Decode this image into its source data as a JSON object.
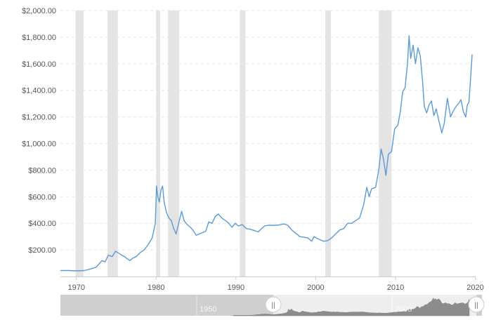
{
  "chart_data": {
    "type": "line",
    "title": "",
    "xlabel": "",
    "ylabel": "",
    "xlim": [
      1968,
      2019.6
    ],
    "ylim": [
      0,
      2000
    ],
    "grid": true,
    "y_ticks": [
      200,
      400,
      600,
      800,
      1000,
      1200,
      1400,
      1600,
      1800,
      2000
    ],
    "y_tick_labels": [
      "$200.00",
      "$400.00",
      "$600.00",
      "$800.00",
      "$1,000.00",
      "$1,200.00",
      "$1,400.00",
      "$1,600.00",
      "$1,800.00",
      "$2,000.00"
    ],
    "x_ticks": [
      1970,
      1980,
      1990,
      2000,
      2010,
      2020
    ],
    "x_tick_labels": [
      "1970",
      "1980",
      "1990",
      "2000",
      "2010",
      "2020"
    ],
    "recession_bands": [
      [
        1969.9,
        1970.9
      ],
      [
        1973.9,
        1975.2
      ],
      [
        1980.0,
        1980.5
      ],
      [
        1981.5,
        1982.9
      ],
      [
        1990.5,
        1991.2
      ],
      [
        2001.2,
        2001.9
      ],
      [
        2007.9,
        2009.5
      ]
    ],
    "series": [
      {
        "color": "#5b9bd5",
        "points": [
          [
            1968.0,
            45
          ],
          [
            1969.0,
            45
          ],
          [
            1970.0,
            42
          ],
          [
            1971.0,
            45
          ],
          [
            1972.0,
            60
          ],
          [
            1972.5,
            70
          ],
          [
            1973.2,
            120
          ],
          [
            1973.6,
            110
          ],
          [
            1974.0,
            160
          ],
          [
            1974.5,
            150
          ],
          [
            1974.9,
            190
          ],
          [
            1975.3,
            175
          ],
          [
            1976.0,
            150
          ],
          [
            1976.7,
            120
          ],
          [
            1977.0,
            135
          ],
          [
            1977.5,
            150
          ],
          [
            1978.0,
            180
          ],
          [
            1978.5,
            200
          ],
          [
            1979.0,
            240
          ],
          [
            1979.5,
            290
          ],
          [
            1979.9,
            400
          ],
          [
            1980.05,
            680
          ],
          [
            1980.2,
            600
          ],
          [
            1980.4,
            560
          ],
          [
            1980.6,
            650
          ],
          [
            1980.8,
            680
          ],
          [
            1981.0,
            560
          ],
          [
            1981.3,
            480
          ],
          [
            1981.6,
            440
          ],
          [
            1981.9,
            420
          ],
          [
            1982.2,
            360
          ],
          [
            1982.5,
            320
          ],
          [
            1982.9,
            420
          ],
          [
            1983.2,
            490
          ],
          [
            1983.5,
            420
          ],
          [
            1983.9,
            390
          ],
          [
            1984.3,
            370
          ],
          [
            1984.6,
            350
          ],
          [
            1985.0,
            310
          ],
          [
            1985.4,
            320
          ],
          [
            1985.8,
            330
          ],
          [
            1986.2,
            340
          ],
          [
            1986.6,
            410
          ],
          [
            1987.0,
            400
          ],
          [
            1987.4,
            450
          ],
          [
            1987.8,
            470
          ],
          [
            1988.2,
            440
          ],
          [
            1988.7,
            420
          ],
          [
            1989.1,
            400
          ],
          [
            1989.5,
            370
          ],
          [
            1989.9,
            400
          ],
          [
            1990.3,
            380
          ],
          [
            1990.8,
            390
          ],
          [
            1991.3,
            360
          ],
          [
            1991.8,
            355
          ],
          [
            1992.3,
            345
          ],
          [
            1992.8,
            335
          ],
          [
            1993.2,
            360
          ],
          [
            1993.6,
            380
          ],
          [
            1994.0,
            385
          ],
          [
            1994.5,
            385
          ],
          [
            1995.0,
            385
          ],
          [
            1995.5,
            388
          ],
          [
            1996.0,
            395
          ],
          [
            1996.5,
            385
          ],
          [
            1997.0,
            350
          ],
          [
            1997.5,
            325
          ],
          [
            1998.0,
            300
          ],
          [
            1998.5,
            295
          ],
          [
            1999.0,
            290
          ],
          [
            1999.5,
            265
          ],
          [
            1999.8,
            300
          ],
          [
            2000.2,
            285
          ],
          [
            2000.6,
            275
          ],
          [
            2001.0,
            265
          ],
          [
            2001.5,
            270
          ],
          [
            2002.0,
            290
          ],
          [
            2002.5,
            320
          ],
          [
            2003.0,
            350
          ],
          [
            2003.5,
            360
          ],
          [
            2004.0,
            400
          ],
          [
            2004.5,
            400
          ],
          [
            2005.0,
            420
          ],
          [
            2005.5,
            440
          ],
          [
            2006.0,
            540
          ],
          [
            2006.4,
            670
          ],
          [
            2006.7,
            600
          ],
          [
            2007.0,
            660
          ],
          [
            2007.5,
            670
          ],
          [
            2007.9,
            800
          ],
          [
            2008.2,
            960
          ],
          [
            2008.5,
            880
          ],
          [
            2008.8,
            760
          ],
          [
            2009.1,
            920
          ],
          [
            2009.5,
            940
          ],
          [
            2009.9,
            1110
          ],
          [
            2010.3,
            1140
          ],
          [
            2010.6,
            1240
          ],
          [
            2010.9,
            1390
          ],
          [
            2011.2,
            1420
          ],
          [
            2011.5,
            1600
          ],
          [
            2011.7,
            1810
          ],
          [
            2011.9,
            1640
          ],
          [
            2012.2,
            1740
          ],
          [
            2012.5,
            1600
          ],
          [
            2012.8,
            1720
          ],
          [
            2013.1,
            1660
          ],
          [
            2013.4,
            1460
          ],
          [
            2013.6,
            1280
          ],
          [
            2013.9,
            1230
          ],
          [
            2014.2,
            1290
          ],
          [
            2014.5,
            1320
          ],
          [
            2014.8,
            1210
          ],
          [
            2015.1,
            1260
          ],
          [
            2015.4,
            1180
          ],
          [
            2015.8,
            1080
          ],
          [
            2016.1,
            1150
          ],
          [
            2016.5,
            1340
          ],
          [
            2016.9,
            1200
          ],
          [
            2017.2,
            1240
          ],
          [
            2017.6,
            1280
          ],
          [
            2017.9,
            1300
          ],
          [
            2018.2,
            1330
          ],
          [
            2018.5,
            1240
          ],
          [
            2018.8,
            1200
          ],
          [
            2019.0,
            1290
          ],
          [
            2019.2,
            1310
          ],
          [
            2019.4,
            1480
          ],
          [
            2019.6,
            1670
          ]
        ]
      }
    ]
  },
  "navigator": {
    "labels": [
      "1950",
      "2000"
    ],
    "handle_glyph": "||",
    "range_fraction": [
      0.41,
      0.97
    ]
  }
}
